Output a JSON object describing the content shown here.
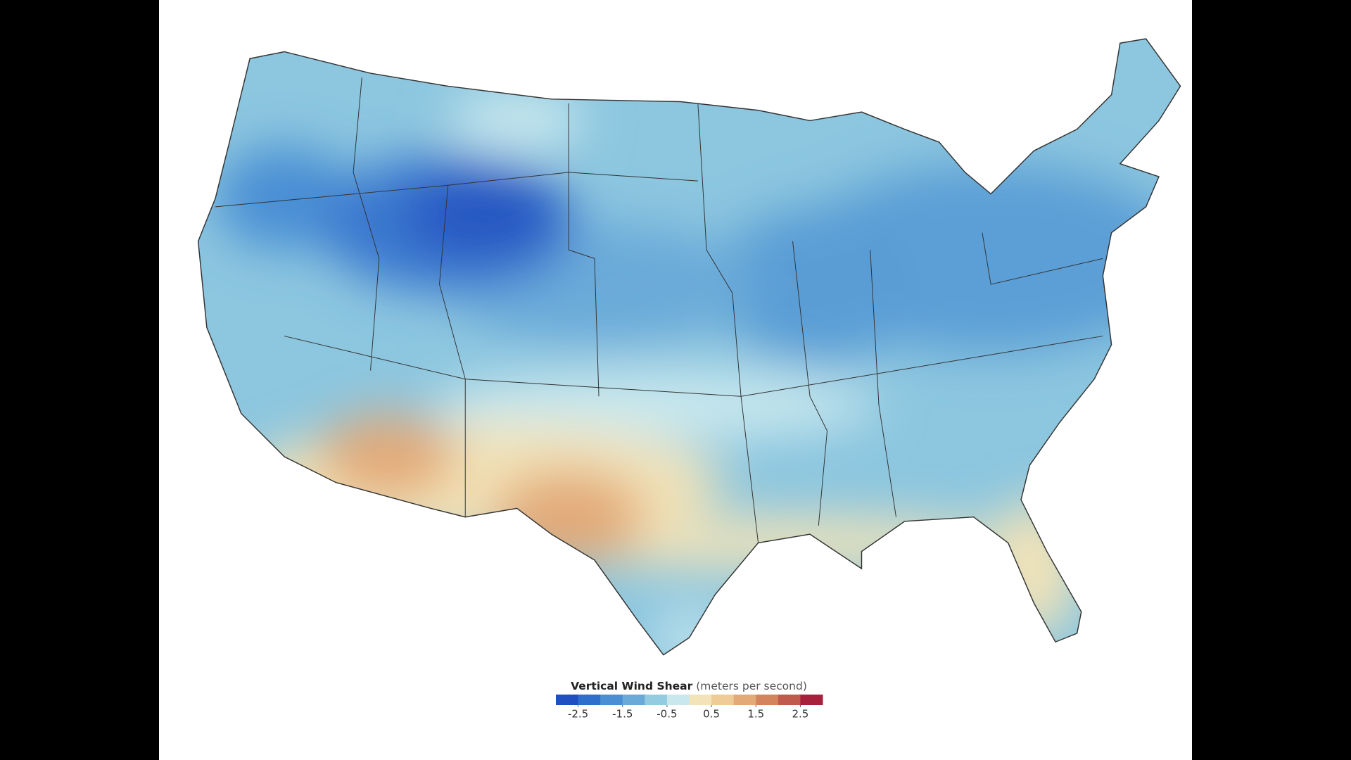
{
  "legend": {
    "title": "Vertical Wind Shear",
    "unit": "(meters per second)",
    "lim": [
      -3,
      3
    ],
    "colors": [
      "#1f4fc0",
      "#2f6fcc",
      "#4a8fd4",
      "#6aaad9",
      "#93cce0",
      "#c9e8ee",
      "#f2e3b8",
      "#efcc95",
      "#e3aa78",
      "#d4845c",
      "#c05a4c",
      "#a8213c"
    ],
    "ticks": [
      -2.5,
      -1.5,
      -0.5,
      0.5,
      1.5,
      2.5
    ]
  }
}
